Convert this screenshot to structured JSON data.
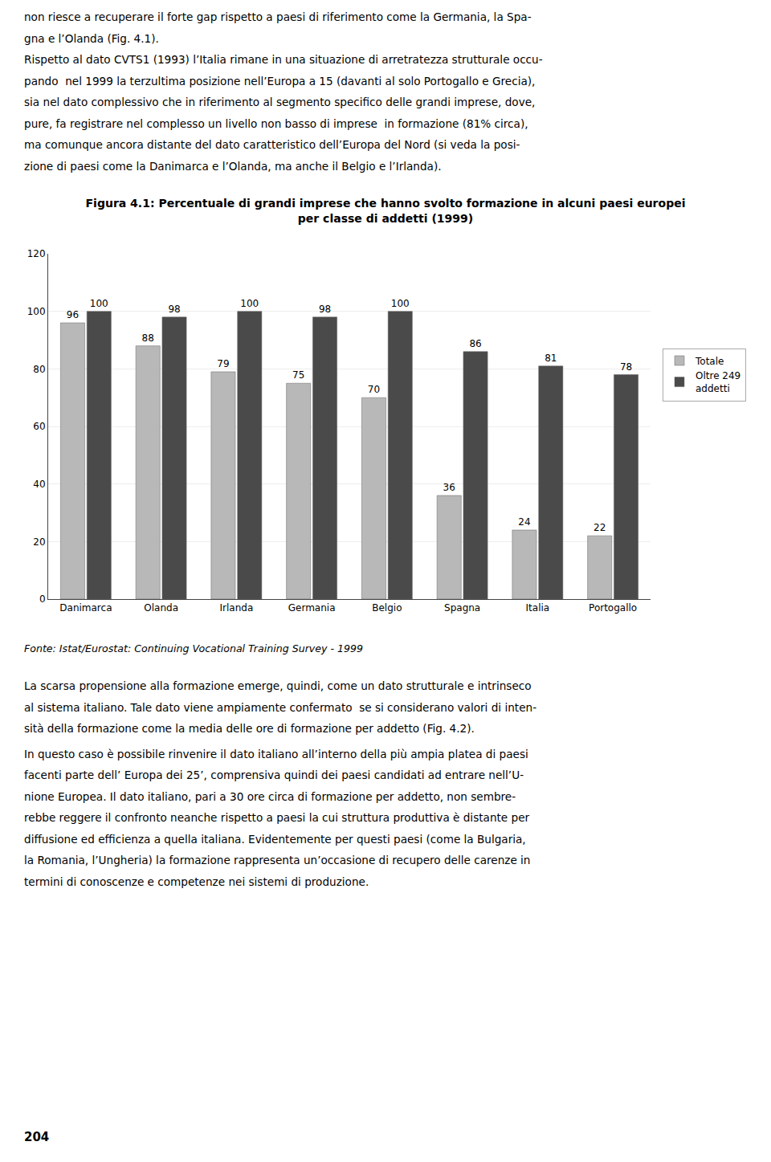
{
  "chart_data": {
    "type": "bar",
    "title": "Figura 4.1: Percentuale di grandi imprese che hanno svolto formazione in alcuni paesi europei\nper classe di addetti (1999)",
    "categories": [
      "Danimarca",
      "Olanda",
      "Irlanda",
      "Germania",
      "Belgio",
      "Spagna",
      "Italia",
      "Portogallo"
    ],
    "series": [
      {
        "name": "Totale",
        "color": "#b8b8b8",
        "values": [
          96,
          88,
          79,
          75,
          70,
          36,
          24,
          22
        ]
      },
      {
        "name": "Oltre 249\naddetti",
        "color": "#4a4a4a",
        "values": [
          100,
          98,
          100,
          98,
          100,
          86,
          81,
          78
        ]
      }
    ],
    "ylim": [
      0,
      120
    ],
    "yticks": [
      0,
      20,
      40,
      60,
      80,
      100,
      120
    ],
    "grid": true,
    "legend": "right",
    "data_labels": true
  },
  "page_text": {
    "before": [
      "non riesce a recuperare il forte gap rispetto a paesi di riferimento come la Germania, la Spa-",
      "gna e l’Olanda (Fig. 4.1).",
      "Rispetto al dato CVTS1 (1993) l’Italia rimane in una situazione di arretratezza strutturale occu-",
      "pando  nel 1999 la terzultima posizione nell’Europa a 15 (davanti al solo Portogallo e Grecia),",
      "sia nel dato complessivo che in riferimento al segmento specifico delle grandi imprese, dove,",
      "pure, fa registrare nel complesso un livello non basso di imprese  in formazione (81% circa),",
      "ma comunque ancora distante del dato caratteristico dell’Europa del Nord (si veda la posi-",
      "zione di paesi come la Danimarca e l’Olanda, ma anche il Belgio e l’Irlanda)."
    ],
    "source": "Fonte: Istat/Eurostat: Continuing Vocational Training Survey - 1999",
    "after": [
      [
        "La scarsa propensione alla formazione emerge, quindi, come un dato strutturale e intrinseco",
        "al sistema italiano. Tale dato viene ampiamente confermato  se si considerano valori di inten-",
        "sità della formazione come la media delle ore di formazione per addetto (Fig. 4.2)."
      ],
      [
        "In questo caso è possibile rinvenire il dato italiano all’interno della più ampia platea di paesi",
        "facenti parte dell’ Europa dei 25’, comprensiva quindi dei paesi candidati ad entrare nell’U-",
        "nione Europea. Il dato italiano, pari a 30 ore circa di formazione per addetto, non sembre-",
        "rebbe reggere il confronto neanche rispetto a paesi la cui struttura produttiva è distante per",
        "diffusione ed efficienza a quella italiana. Evidentemente per questi paesi (come la Bulgaria,",
        "la Romania, l’Ungheria) la formazione rappresenta un’occasione di recupero delle carenze in",
        "termini di conoscenze e competenze nei sistemi di produzione."
      ]
    ],
    "page_number": "204"
  }
}
